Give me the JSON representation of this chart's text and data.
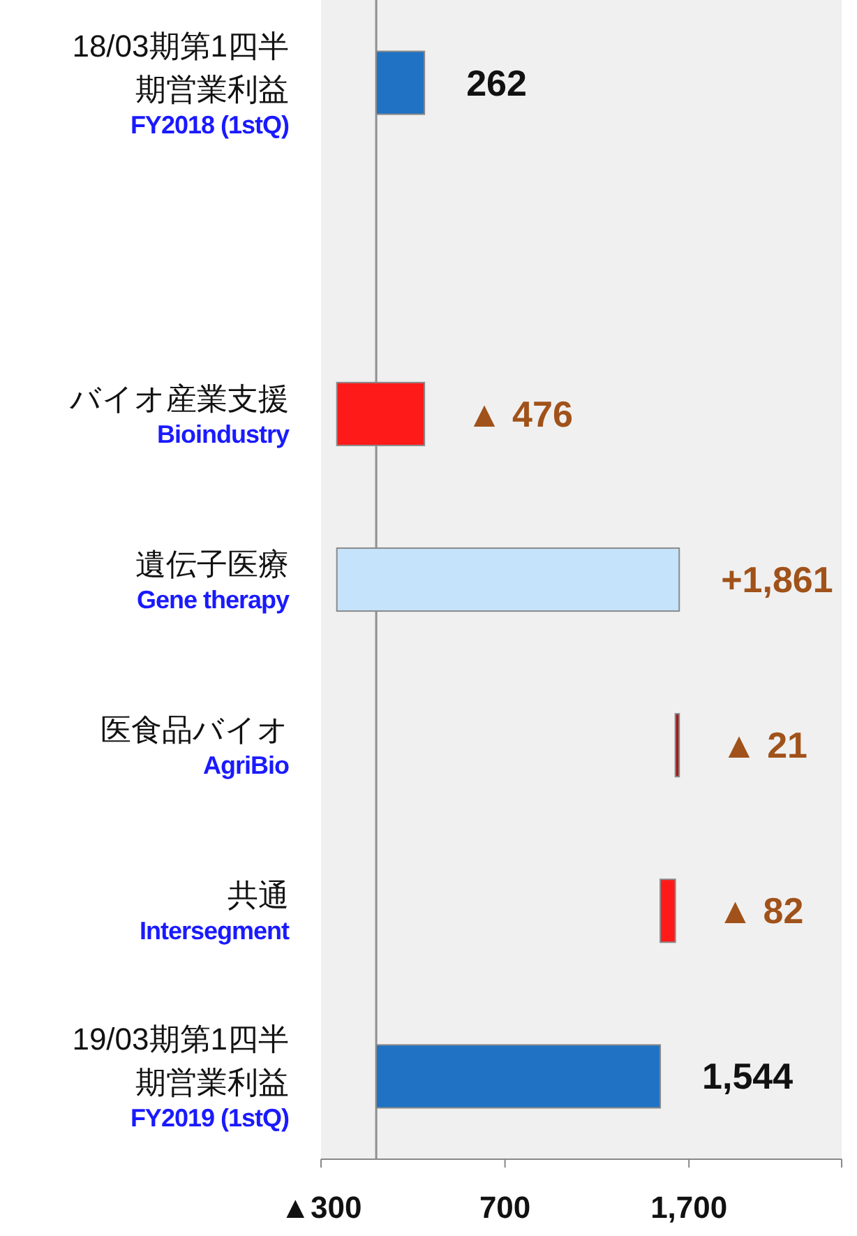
{
  "chart_data": {
    "type": "bar",
    "orientation": "horizontal",
    "categories": [
      "18/03期第1四半期営業利益\nFY2018 (1stQ)",
      null,
      "バイオ産業支援\nBioindustry",
      "遺伝子医療\nGene therapy",
      "医食品バイオ\nAgriBio",
      "共通\nIntersegment",
      "19/03期第1四半期営業利益\nFY2019 (1stQ)"
    ],
    "values": [
      262,
      null,
      -476,
      1861,
      -21,
      -82,
      1544
    ],
    "base": [
      0,
      null,
      262,
      -214,
      1647,
      1626,
      0
    ],
    "colors": [
      "#1f72c4",
      null,
      "#ff1a1a",
      "#c5e3fa",
      "#9e1c1c",
      "#ff1a1a",
      "#1f72c4"
    ],
    "value_labels": [
      "262",
      null,
      "▲ 476",
      "+1,861",
      "▲ 21",
      "▲ 82",
      "1,544"
    ],
    "xlim": [
      -300,
      2530
    ],
    "xticks": [
      {
        "value": -300,
        "label": "▲300"
      },
      700,
      {
        "value": 1700,
        "label": "1,700"
      }
    ],
    "ref_lines": [
      {
        "axis": "x",
        "value": 0,
        "color": "#909090"
      }
    ]
  }
}
